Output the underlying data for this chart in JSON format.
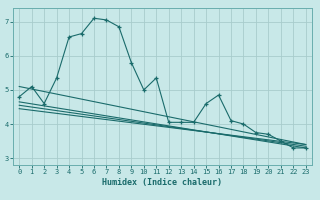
{
  "bg_color": "#c8e8e8",
  "line_color": "#1a6b6b",
  "grid_color": "#a8cccc",
  "xlabel": "Humidex (Indice chaleur)",
  "xlim": [
    -0.5,
    23.5
  ],
  "ylim": [
    2.8,
    7.4
  ],
  "yticks": [
    3,
    4,
    5,
    6,
    7
  ],
  "xticks": [
    0,
    1,
    2,
    3,
    4,
    5,
    6,
    7,
    8,
    9,
    10,
    11,
    12,
    13,
    14,
    15,
    16,
    17,
    18,
    19,
    20,
    21,
    22,
    23
  ],
  "main_line_x": [
    0,
    1,
    2,
    3,
    4,
    5,
    6,
    7,
    8,
    9,
    10,
    11,
    12,
    13,
    14,
    15,
    16,
    17,
    18,
    19,
    20,
    21,
    22,
    23
  ],
  "main_line_y": [
    4.8,
    5.1,
    4.6,
    5.35,
    6.55,
    6.65,
    7.1,
    7.05,
    6.85,
    5.8,
    5.0,
    5.35,
    4.05,
    4.05,
    4.05,
    4.6,
    4.85,
    4.1,
    4.0,
    3.75,
    3.7,
    3.5,
    3.3,
    3.3
  ],
  "reg_line1_x": [
    0,
    23
  ],
  "reg_line1_y": [
    5.1,
    3.4
  ],
  "reg_line2_x": [
    0,
    23
  ],
  "reg_line2_y": [
    4.65,
    3.3
  ],
  "reg_line3_x": [
    0,
    23
  ],
  "reg_line3_y": [
    4.55,
    3.35
  ],
  "reg_line4_x": [
    0,
    23
  ],
  "reg_line4_y": [
    4.45,
    3.4
  ]
}
